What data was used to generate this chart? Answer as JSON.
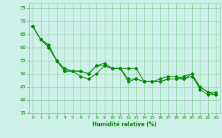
{
  "xlabel": "Humidité relative (%)",
  "background_color": "#cdf0e8",
  "grid_color": "#88cc99",
  "line_color": "#008800",
  "xlim": [
    -0.5,
    23.5
  ],
  "ylim": [
    35,
    77
  ],
  "yticks": [
    35,
    40,
    45,
    50,
    55,
    60,
    65,
    70,
    75
  ],
  "xticks": [
    0,
    1,
    2,
    3,
    4,
    5,
    6,
    7,
    8,
    9,
    10,
    11,
    12,
    13,
    14,
    15,
    16,
    17,
    18,
    19,
    20,
    21,
    22,
    23
  ],
  "series1": [
    68,
    63,
    61,
    55,
    51,
    51,
    51,
    50,
    53,
    53,
    52,
    52,
    48,
    48,
    47,
    47,
    47,
    48,
    48,
    49,
    50,
    44,
    42,
    42
  ],
  "series2": [
    68,
    63,
    60,
    55,
    51,
    51,
    49,
    48,
    50,
    53,
    52,
    52,
    47,
    48,
    47,
    47,
    47,
    48,
    48,
    48,
    49,
    45,
    43,
    42
  ],
  "series3": [
    68,
    63,
    60,
    55,
    52,
    51,
    51,
    50,
    53,
    54,
    52,
    52,
    52,
    52,
    47,
    47,
    48,
    49,
    49,
    48,
    50,
    45,
    43,
    43
  ]
}
